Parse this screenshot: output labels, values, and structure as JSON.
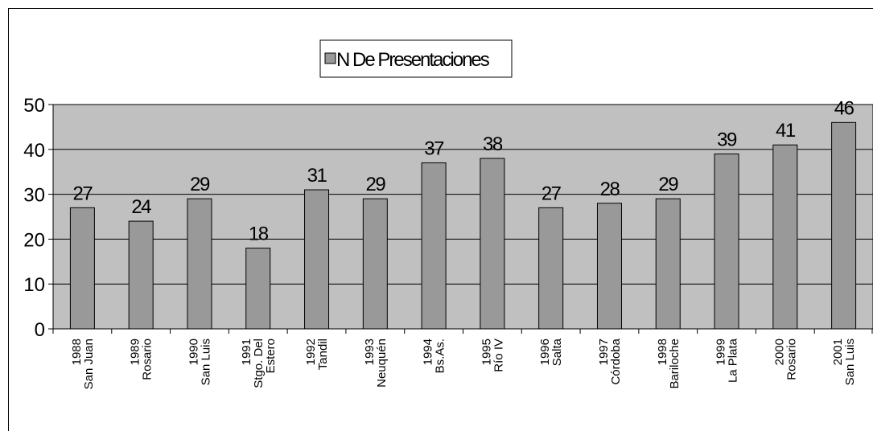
{
  "chart_data": {
    "type": "bar",
    "categories": [
      [
        "1988",
        "San Juan"
      ],
      [
        "1989",
        "Rosario"
      ],
      [
        "1990",
        "San Luis"
      ],
      [
        "1991",
        "Stgo. Del",
        "Estero"
      ],
      [
        "1992",
        "Tandil"
      ],
      [
        "1993",
        "Neuquén"
      ],
      [
        "1994",
        "Bs.As."
      ],
      [
        "1995",
        "Río IV"
      ],
      [
        "1996",
        "Salta"
      ],
      [
        "1997",
        "Córdoba"
      ],
      [
        "1998",
        "Bariloche"
      ],
      [
        "1999",
        "La Plata"
      ],
      [
        "2000",
        "Rosario"
      ],
      [
        "2001",
        "San Luis"
      ]
    ],
    "series": [
      {
        "name": "N De Presentaciones",
        "values": [
          27,
          24,
          29,
          18,
          31,
          29,
          37,
          38,
          27,
          28,
          29,
          39,
          41,
          46
        ]
      }
    ],
    "ylim": [
      0,
      50
    ],
    "yticks": [
      0,
      10,
      20,
      30,
      40,
      50
    ],
    "grid": true,
    "legend_position": "top-center",
    "colors": {
      "bar": "#999999",
      "plot_background": "#c0c0c0",
      "bar_stroke": "#000000"
    }
  }
}
